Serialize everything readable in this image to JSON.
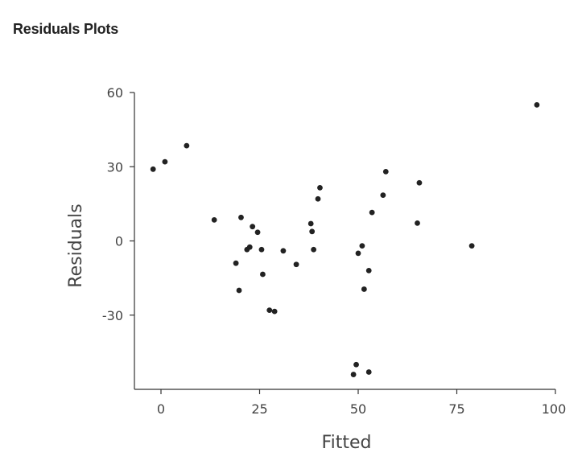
{
  "page": {
    "heading": "Residuals Plots"
  },
  "chart_data": {
    "type": "scatter",
    "title": "",
    "xlabel": "Fitted",
    "ylabel": "Residuals",
    "xlim": [
      -6,
      100
    ],
    "ylim": [
      -60,
      60
    ],
    "xticks": [
      0,
      25,
      50,
      75,
      100
    ],
    "yticks": [
      60,
      30,
      0,
      -30
    ],
    "grid": false,
    "legend": "none",
    "marker_color": "#222222",
    "points": [
      {
        "x": -2,
        "y": 29
      },
      {
        "x": 1,
        "y": 32
      },
      {
        "x": 6.5,
        "y": 38.5
      },
      {
        "x": 13.5,
        "y": 8.5
      },
      {
        "x": 19,
        "y": -9
      },
      {
        "x": 19.8,
        "y": -20
      },
      {
        "x": 20.3,
        "y": 9.5
      },
      {
        "x": 21.8,
        "y": -3.5
      },
      {
        "x": 22.5,
        "y": -2.5
      },
      {
        "x": 23.2,
        "y": 5.8
      },
      {
        "x": 24.5,
        "y": 3.5
      },
      {
        "x": 25.5,
        "y": -3.5
      },
      {
        "x": 25.8,
        "y": -13.5
      },
      {
        "x": 27.5,
        "y": -28
      },
      {
        "x": 28.8,
        "y": -28.5
      },
      {
        "x": 31,
        "y": -4
      },
      {
        "x": 34.3,
        "y": -9.5
      },
      {
        "x": 38,
        "y": 7
      },
      {
        "x": 38.3,
        "y": 3.8
      },
      {
        "x": 38.7,
        "y": -3.5
      },
      {
        "x": 39.8,
        "y": 17
      },
      {
        "x": 40.3,
        "y": 21.5
      },
      {
        "x": 48.8,
        "y": -54
      },
      {
        "x": 49.5,
        "y": -50
      },
      {
        "x": 50,
        "y": -5
      },
      {
        "x": 51,
        "y": -2
      },
      {
        "x": 51.5,
        "y": -19.5
      },
      {
        "x": 52.7,
        "y": -12
      },
      {
        "x": 52.7,
        "y": -53
      },
      {
        "x": 53.5,
        "y": 11.5
      },
      {
        "x": 56.3,
        "y": 18.5
      },
      {
        "x": 57,
        "y": 28
      },
      {
        "x": 65,
        "y": 7.2
      },
      {
        "x": 65.5,
        "y": 23.5
      },
      {
        "x": 78.8,
        "y": -2
      },
      {
        "x": 95.3,
        "y": 55
      }
    ]
  }
}
